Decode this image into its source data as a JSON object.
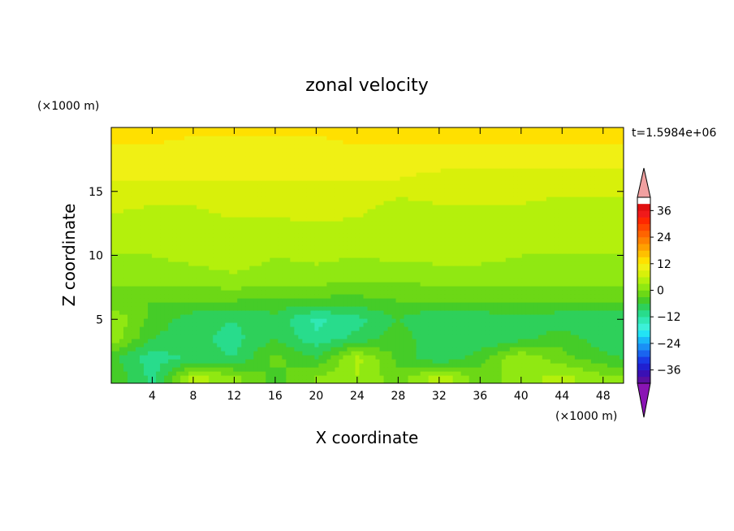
{
  "chart_data": {
    "type": "heatmap",
    "title": "zonal velocity",
    "xlabel": "X coordinate",
    "ylabel": "Z coordinate",
    "x_units": "(×1000 m)",
    "y_units": "(×1000 m)",
    "time_label": "t=1.5984e+06",
    "xlim": [
      0,
      50
    ],
    "ylim": [
      0,
      20
    ],
    "x_ticks": [
      4,
      8,
      12,
      16,
      20,
      24,
      28,
      32,
      36,
      40,
      44,
      48
    ],
    "y_ticks": [
      5,
      10,
      15
    ],
    "colorbar": {
      "levels": [
        -42,
        -39,
        -36,
        -33,
        -30,
        -27,
        -24,
        -21,
        -18,
        -15,
        -12,
        -9,
        -6,
        -3,
        0,
        3,
        6,
        9,
        12,
        15,
        18,
        21,
        24,
        27,
        30,
        33,
        36,
        39,
        42
      ],
      "labels": [
        -36,
        -24,
        -12,
        0,
        12,
        24,
        36
      ],
      "colors": [
        "#5a0fa0",
        "#3a10b4",
        "#2020d0",
        "#1a3ae6",
        "#1a64f0",
        "#1a90f5",
        "#1ab8f8",
        "#22e3f5",
        "#3cf0d8",
        "#30e8b4",
        "#28dc8c",
        "#2ed05a",
        "#45cc28",
        "#6cd816",
        "#90e812",
        "#b4f00c",
        "#d8f00a",
        "#f0f014",
        "#ffe000",
        "#ffc000",
        "#ffa000",
        "#ff8200",
        "#ff6400",
        "#ff4600",
        "#ff2800",
        "#f01a1a",
        "#e01010"
      ],
      "under_color": "#8a14b4",
      "over_color": "#f0a0a0"
    },
    "rows_z": [
      0.5,
      2,
      3.5,
      5,
      6.5,
      8,
      10,
      12,
      14,
      16,
      18,
      19.5
    ],
    "cols_x": [
      0,
      4,
      8,
      12,
      16,
      20,
      24,
      28,
      32,
      36,
      40,
      44,
      48,
      50
    ],
    "values": [
      [
        -3,
        -10,
        4,
        1,
        -4,
        0,
        3,
        -2,
        5,
        -2,
        2,
        4,
        1,
        0
      ],
      [
        -5,
        -11,
        -8,
        -9,
        -2,
        -6,
        4,
        -4,
        -9,
        -4,
        3,
        -2,
        -5,
        -6
      ],
      [
        2,
        -6,
        -8,
        -10,
        -6,
        -11,
        -8,
        -4,
        -9,
        -9,
        -7,
        -4,
        -8,
        -9
      ],
      [
        3,
        -4,
        -8,
        -9,
        -7,
        -13,
        -10,
        -6,
        -9,
        -8,
        -7,
        -8,
        -9,
        -9
      ],
      [
        -3,
        -3,
        -3,
        -3,
        -4,
        -4,
        -4,
        -3,
        -3,
        -3,
        -3,
        -3,
        -3,
        -3
      ],
      [
        1,
        1,
        1,
        2,
        1,
        1,
        0,
        0,
        1,
        1,
        1,
        1,
        1,
        1
      ],
      [
        3,
        3,
        4,
        5,
        3,
        4,
        3,
        4,
        4,
        4,
        3,
        3,
        3,
        3
      ],
      [
        4,
        4,
        5,
        5,
        5,
        5,
        5,
        4,
        4,
        4,
        4,
        4,
        4,
        4
      ],
      [
        7,
        6,
        6,
        7,
        7,
        8,
        7,
        5,
        6,
        6,
        6,
        5,
        5,
        5
      ],
      [
        9,
        9,
        9,
        9,
        9,
        9,
        9,
        9,
        8,
        8,
        8,
        8,
        8,
        8
      ],
      [
        11,
        11,
        11,
        11,
        11,
        11,
        11,
        11,
        11,
        11,
        11,
        11,
        11,
        11
      ],
      [
        13,
        13,
        12,
        12,
        12,
        12,
        13,
        13,
        13,
        13,
        13,
        13,
        13,
        13
      ]
    ]
  }
}
